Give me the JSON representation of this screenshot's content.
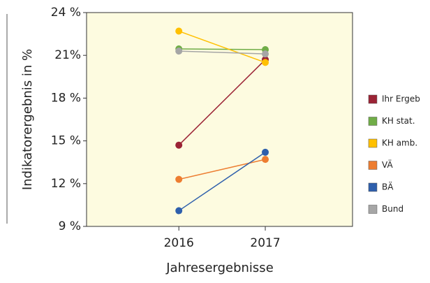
{
  "chart_data": {
    "type": "line",
    "categories": [
      "2016",
      "2017"
    ],
    "series": [
      {
        "name": "Ihr Ergeb",
        "color": "#9b2335",
        "values": [
          14.7,
          20.7
        ]
      },
      {
        "name": "KH stat.",
        "color": "#70ad47",
        "values": [
          21.45,
          21.4
        ]
      },
      {
        "name": "KH amb.",
        "color": "#ffc000",
        "values": [
          22.7,
          20.5
        ]
      },
      {
        "name": "VÄ",
        "color": "#ed7d31",
        "values": [
          12.3,
          13.7
        ]
      },
      {
        "name": "BÄ",
        "color": "#2e5fac",
        "values": [
          10.1,
          14.2
        ]
      },
      {
        "name": "Bund",
        "color": "#a6a6a6",
        "values": [
          21.3,
          21.1
        ]
      }
    ],
    "ylim": [
      9,
      24
    ],
    "yticks": [
      {
        "value": 9,
        "label": "9 %"
      },
      {
        "value": 12,
        "label": "12 %"
      },
      {
        "value": 15,
        "label": "15 %"
      },
      {
        "value": 18,
        "label": "18 %"
      },
      {
        "value": 21,
        "label": "21%"
      },
      {
        "value": 24,
        "label": "24 %"
      }
    ],
    "ylabel": "Indikatorergebnis in %",
    "xlabel": "Jahresergebnisse",
    "legend": "right"
  }
}
